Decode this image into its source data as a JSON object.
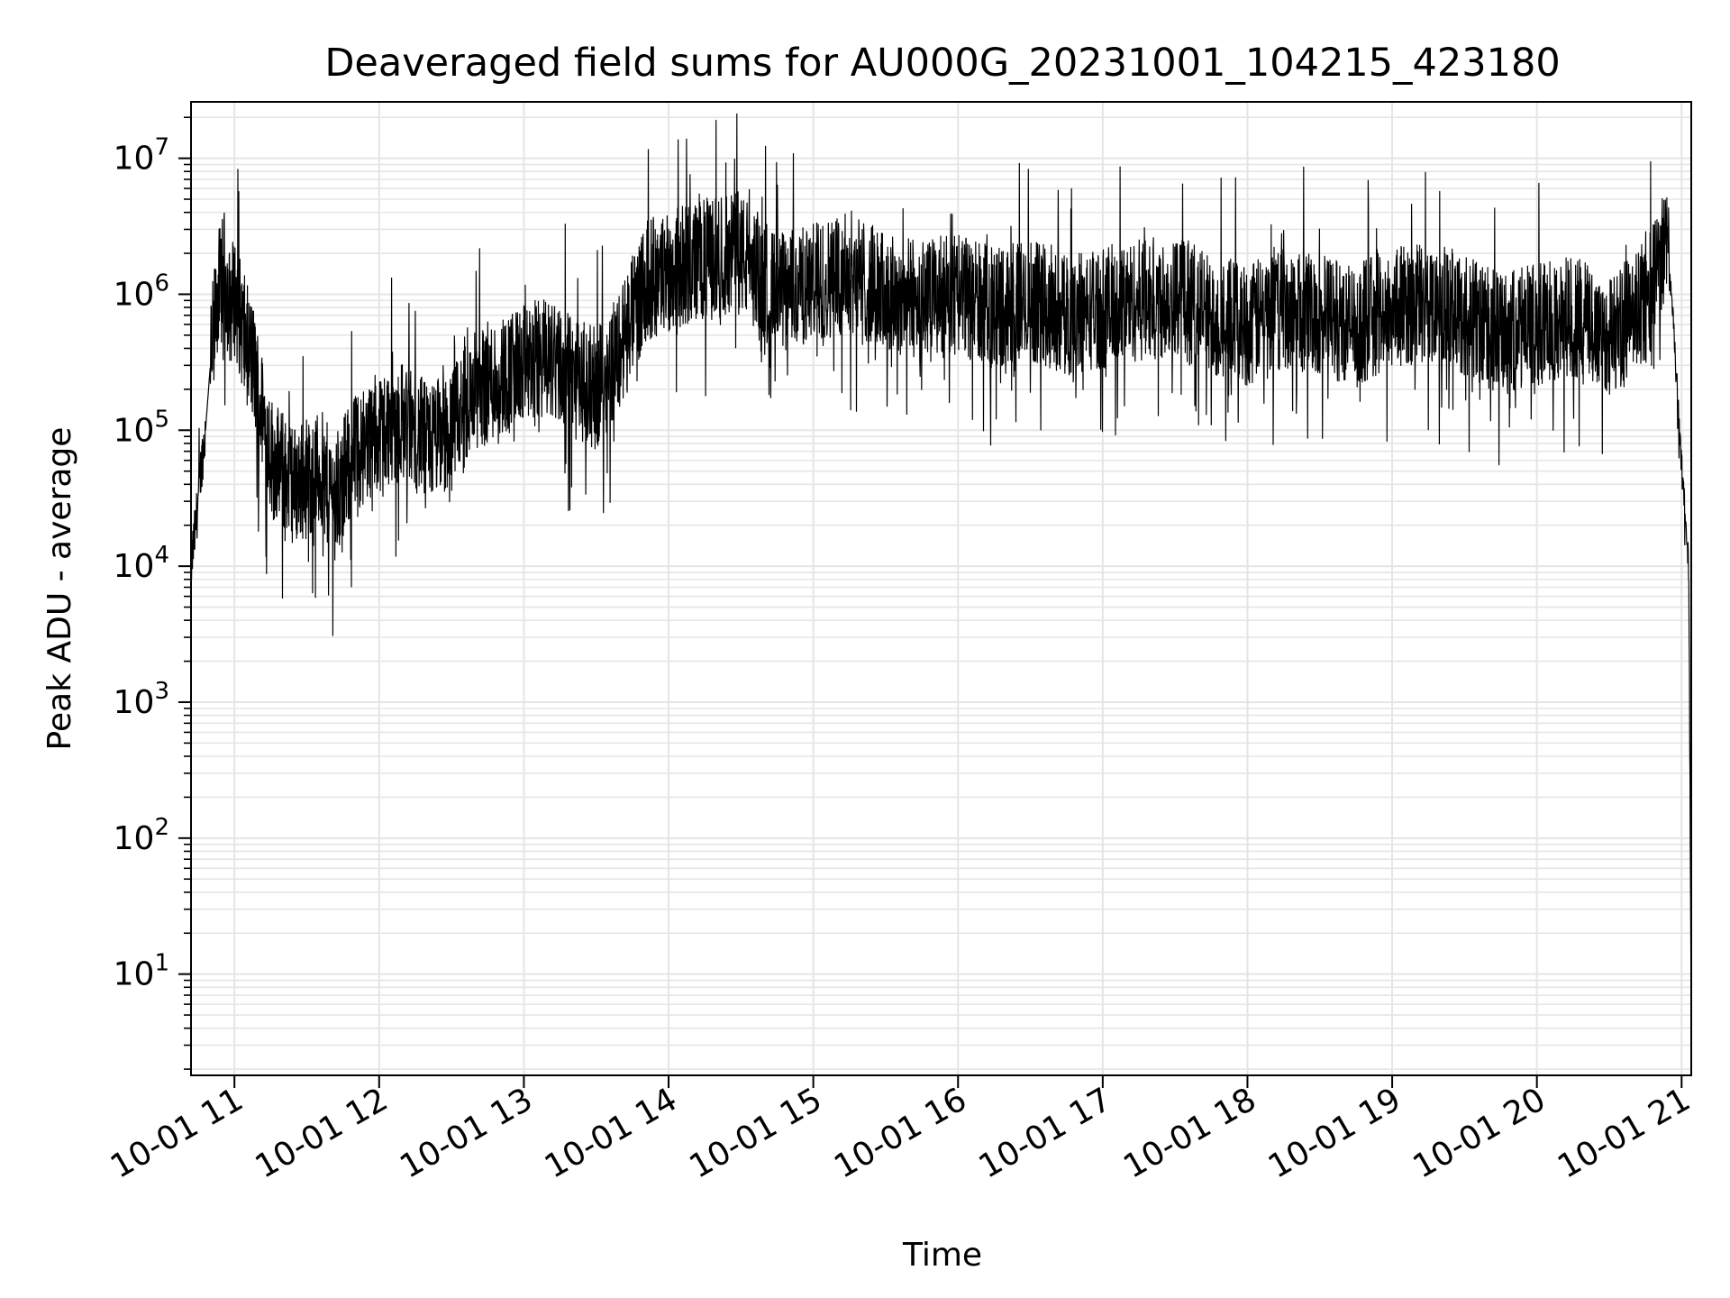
{
  "chart_data": {
    "type": "line",
    "title": "Deaveraged field sums for AU000G_20231001_104215_423180",
    "xlabel": "Time",
    "ylabel": "Peak ADU - average",
    "yscale": "log",
    "grid": true,
    "line_color": "#000000",
    "grid_color": "#e5e5e5",
    "xlim": [
      "2023-10-01 10:42",
      "2023-10-01 21:04"
    ],
    "ylim": [
      1.8,
      26000000
    ],
    "x_ticks": [
      "2023-10-01 11:00",
      "2023-10-01 12:00",
      "2023-10-01 13:00",
      "2023-10-01 14:00",
      "2023-10-01 15:00",
      "2023-10-01 16:00",
      "2023-10-01 17:00",
      "2023-10-01 18:00",
      "2023-10-01 19:00",
      "2023-10-01 20:00",
      "2023-10-01 21:00"
    ],
    "x_tick_labels": [
      "10-01 11",
      "10-01 12",
      "10-01 13",
      "10-01 14",
      "10-01 15",
      "10-01 16",
      "10-01 17",
      "10-01 18",
      "10-01 19",
      "10-01 20",
      "10-01 21"
    ],
    "y_ticks": [
      10,
      100,
      1000,
      10000,
      100000,
      1000000,
      10000000
    ],
    "y_tick_labels": [
      {
        "base": "10",
        "exp": "1"
      },
      {
        "base": "10",
        "exp": "2"
      },
      {
        "base": "10",
        "exp": "3"
      },
      {
        "base": "10",
        "exp": "4"
      },
      {
        "base": "10",
        "exp": "5"
      },
      {
        "base": "10",
        "exp": "6"
      },
      {
        "base": "10",
        "exp": "7"
      }
    ],
    "series": [
      {
        "x": [
          "2023-10-01 10:42",
          "2023-10-01 10:44",
          "2023-10-01 10:46",
          "2023-10-01 10:48",
          "2023-10-01 10:50",
          "2023-10-01 10:53",
          "2023-10-01 10:56",
          "2023-10-01 10:58",
          "2023-10-01 11:00",
          "2023-10-01 11:04",
          "2023-10-01 11:08",
          "2023-10-01 11:12",
          "2023-10-01 11:16",
          "2023-10-01 11:20",
          "2023-10-01 11:25",
          "2023-10-01 11:30",
          "2023-10-01 11:36",
          "2023-10-01 11:42",
          "2023-10-01 11:48",
          "2023-10-01 11:54",
          "2023-10-01 12:00",
          "2023-10-01 12:10",
          "2023-10-01 12:20",
          "2023-10-01 12:30",
          "2023-10-01 12:40",
          "2023-10-01 12:50",
          "2023-10-01 13:00",
          "2023-10-01 13:10",
          "2023-10-01 13:20",
          "2023-10-01 13:30",
          "2023-10-01 13:40",
          "2023-10-01 13:50",
          "2023-10-01 14:00",
          "2023-10-01 14:15",
          "2023-10-01 14:30",
          "2023-10-01 14:45",
          "2023-10-01 15:00",
          "2023-10-01 15:15",
          "2023-10-01 15:30",
          "2023-10-01 15:45",
          "2023-10-01 16:00",
          "2023-10-01 16:15",
          "2023-10-01 16:30",
          "2023-10-01 16:45",
          "2023-10-01 17:00",
          "2023-10-01 17:15",
          "2023-10-01 17:30",
          "2023-10-01 17:45",
          "2023-10-01 18:00",
          "2023-10-01 18:15",
          "2023-10-01 18:30",
          "2023-10-01 18:45",
          "2023-10-01 19:00",
          "2023-10-01 19:15",
          "2023-10-01 19:30",
          "2023-10-01 19:45",
          "2023-10-01 20:00",
          "2023-10-01 20:15",
          "2023-10-01 20:30",
          "2023-10-01 20:45",
          "2023-10-01 20:50",
          "2023-10-01 20:53",
          "2023-10-01 20:56",
          "2023-10-01 20:59",
          "2023-10-01 21:01",
          "2023-10-01 21:03",
          "2023-10-01 21:04"
        ],
        "values": [
          10000,
          20000,
          50000,
          100000,
          300000,
          1000000,
          1500000,
          800000,
          1000000,
          500000,
          300000,
          120000,
          60000,
          50000,
          40000,
          45000,
          50000,
          30000,
          60000,
          80000,
          100000,
          120000,
          80000,
          100000,
          200000,
          250000,
          300000,
          350000,
          250000,
          200000,
          400000,
          1200000,
          1500000,
          1800000,
          2000000,
          1000000,
          1200000,
          1500000,
          1000000,
          900000,
          1000000,
          800000,
          900000,
          700000,
          800000,
          900000,
          1000000,
          700000,
          600000,
          800000,
          700000,
          600000,
          800000,
          900000,
          700000,
          500000,
          600000,
          700000,
          500000,
          800000,
          1500000,
          2500000,
          1000000,
          100000,
          30000,
          10000,
          4
        ]
      }
    ]
  }
}
